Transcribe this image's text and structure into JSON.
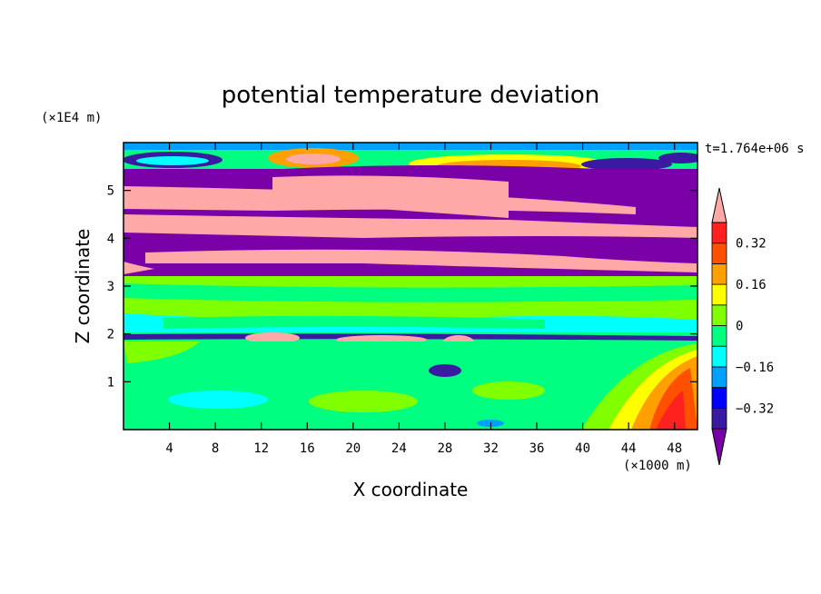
{
  "chart_data": {
    "type": "heatmap",
    "title": "potential temperature deviation",
    "xlabel": "X coordinate",
    "ylabel": "Z coordinate",
    "x_unit": "(×1000 m)",
    "y_unit": "(×1E4 m)",
    "time_label": "t=1.764e+06 s",
    "xlim": [
      0,
      50
    ],
    "ylim": [
      0,
      6
    ],
    "x_ticks": [
      4,
      8,
      12,
      16,
      20,
      24,
      28,
      32,
      36,
      40,
      44,
      48
    ],
    "y_ticks": [
      1,
      2,
      3,
      4,
      5
    ],
    "x_tick_labels": [
      "4",
      "8",
      "12",
      "16",
      "20",
      "24",
      "28",
      "32",
      "36",
      "40",
      "44",
      "48"
    ],
    "y_tick_labels": [
      "1",
      "2",
      "3",
      "4",
      "5"
    ],
    "colorbar": {
      "levels": [
        -0.4,
        -0.32,
        -0.24,
        -0.16,
        -0.08,
        0,
        0.08,
        0.16,
        0.24,
        0.32,
        0.4
      ],
      "tick_values": [
        -0.32,
        -0.16,
        0,
        0.16,
        0.32
      ],
      "tick_labels": [
        "−0.32",
        "−0.16",
        "0",
        "0.16",
        "0.32"
      ],
      "colors": [
        "#7a00a8",
        "#3a1aa0",
        "#0000ff",
        "#00a0ff",
        "#00ffff",
        "#00ff80",
        "#80ff00",
        "#ffff00",
        "#ffa000",
        "#ff5000",
        "#ff2020",
        "#ffa8a8"
      ]
    }
  }
}
